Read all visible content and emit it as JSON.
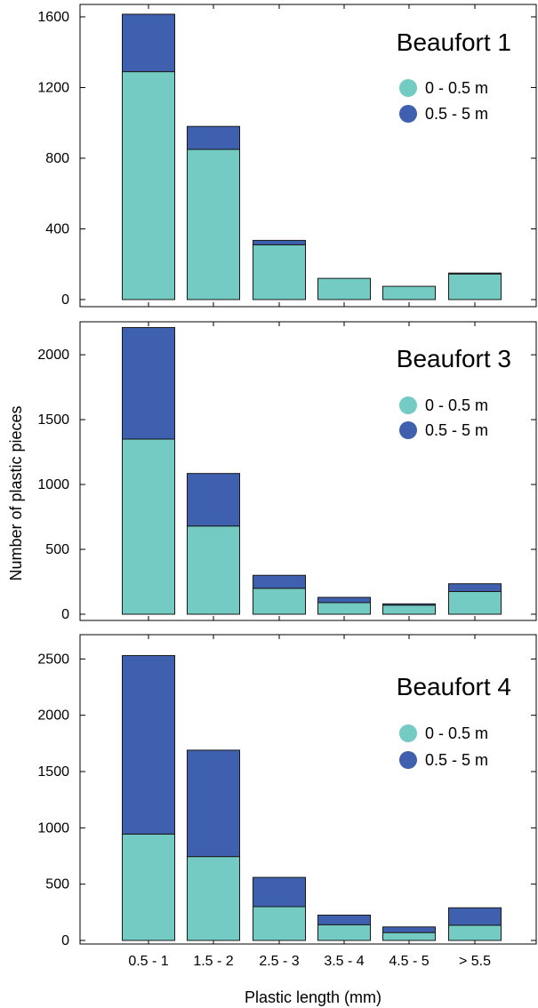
{
  "chart_data": {
    "type": "bar",
    "stacked": true,
    "categories": [
      "0.5 - 1",
      "1.5 - 2",
      "2.5 - 3",
      "3.5 - 4",
      "4.5 - 5",
      "> 5.5"
    ],
    "xlabel": "Plastic length (mm)",
    "ylabel": "Number of plastic pieces",
    "colors": {
      "shallow": "#73cbc3",
      "deep": "#3f5faf"
    },
    "panels": [
      {
        "title": "Beaufort 1",
        "ylim": [
          0,
          1620
        ],
        "yticks": [
          0,
          400,
          800,
          1200,
          1600
        ],
        "legend_placement": "top-right",
        "series": [
          {
            "name": "0 - 0.5 m",
            "values": [
              1290,
              850,
              310,
              120,
              75,
              145
            ]
          },
          {
            "name": "0.5 - 5 m",
            "values": [
              325,
              130,
              25,
              0,
              0,
              5
            ]
          }
        ]
      },
      {
        "title": "Beaufort 3",
        "ylim": [
          0,
          2220
        ],
        "yticks": [
          0,
          500,
          1000,
          1500,
          2000
        ],
        "legend_placement": "top-right",
        "series": [
          {
            "name": "0 - 0.5 m",
            "values": [
              1350,
              680,
              200,
              90,
              70,
              175
            ]
          },
          {
            "name": "0.5 - 5 m",
            "values": [
              860,
              405,
              100,
              40,
              10,
              60
            ]
          }
        ]
      },
      {
        "title": "Beaufort 4",
        "ylim": [
          0,
          2550
        ],
        "yticks": [
          0,
          500,
          1000,
          1500,
          2000,
          2500
        ],
        "legend_placement": "top-right",
        "series": [
          {
            "name": "0 - 0.5 m",
            "values": [
              945,
              745,
              300,
              140,
              70,
              135
            ]
          },
          {
            "name": "0.5 - 5 m",
            "values": [
              1585,
              945,
              260,
              85,
              50,
              155
            ]
          }
        ]
      }
    ]
  }
}
